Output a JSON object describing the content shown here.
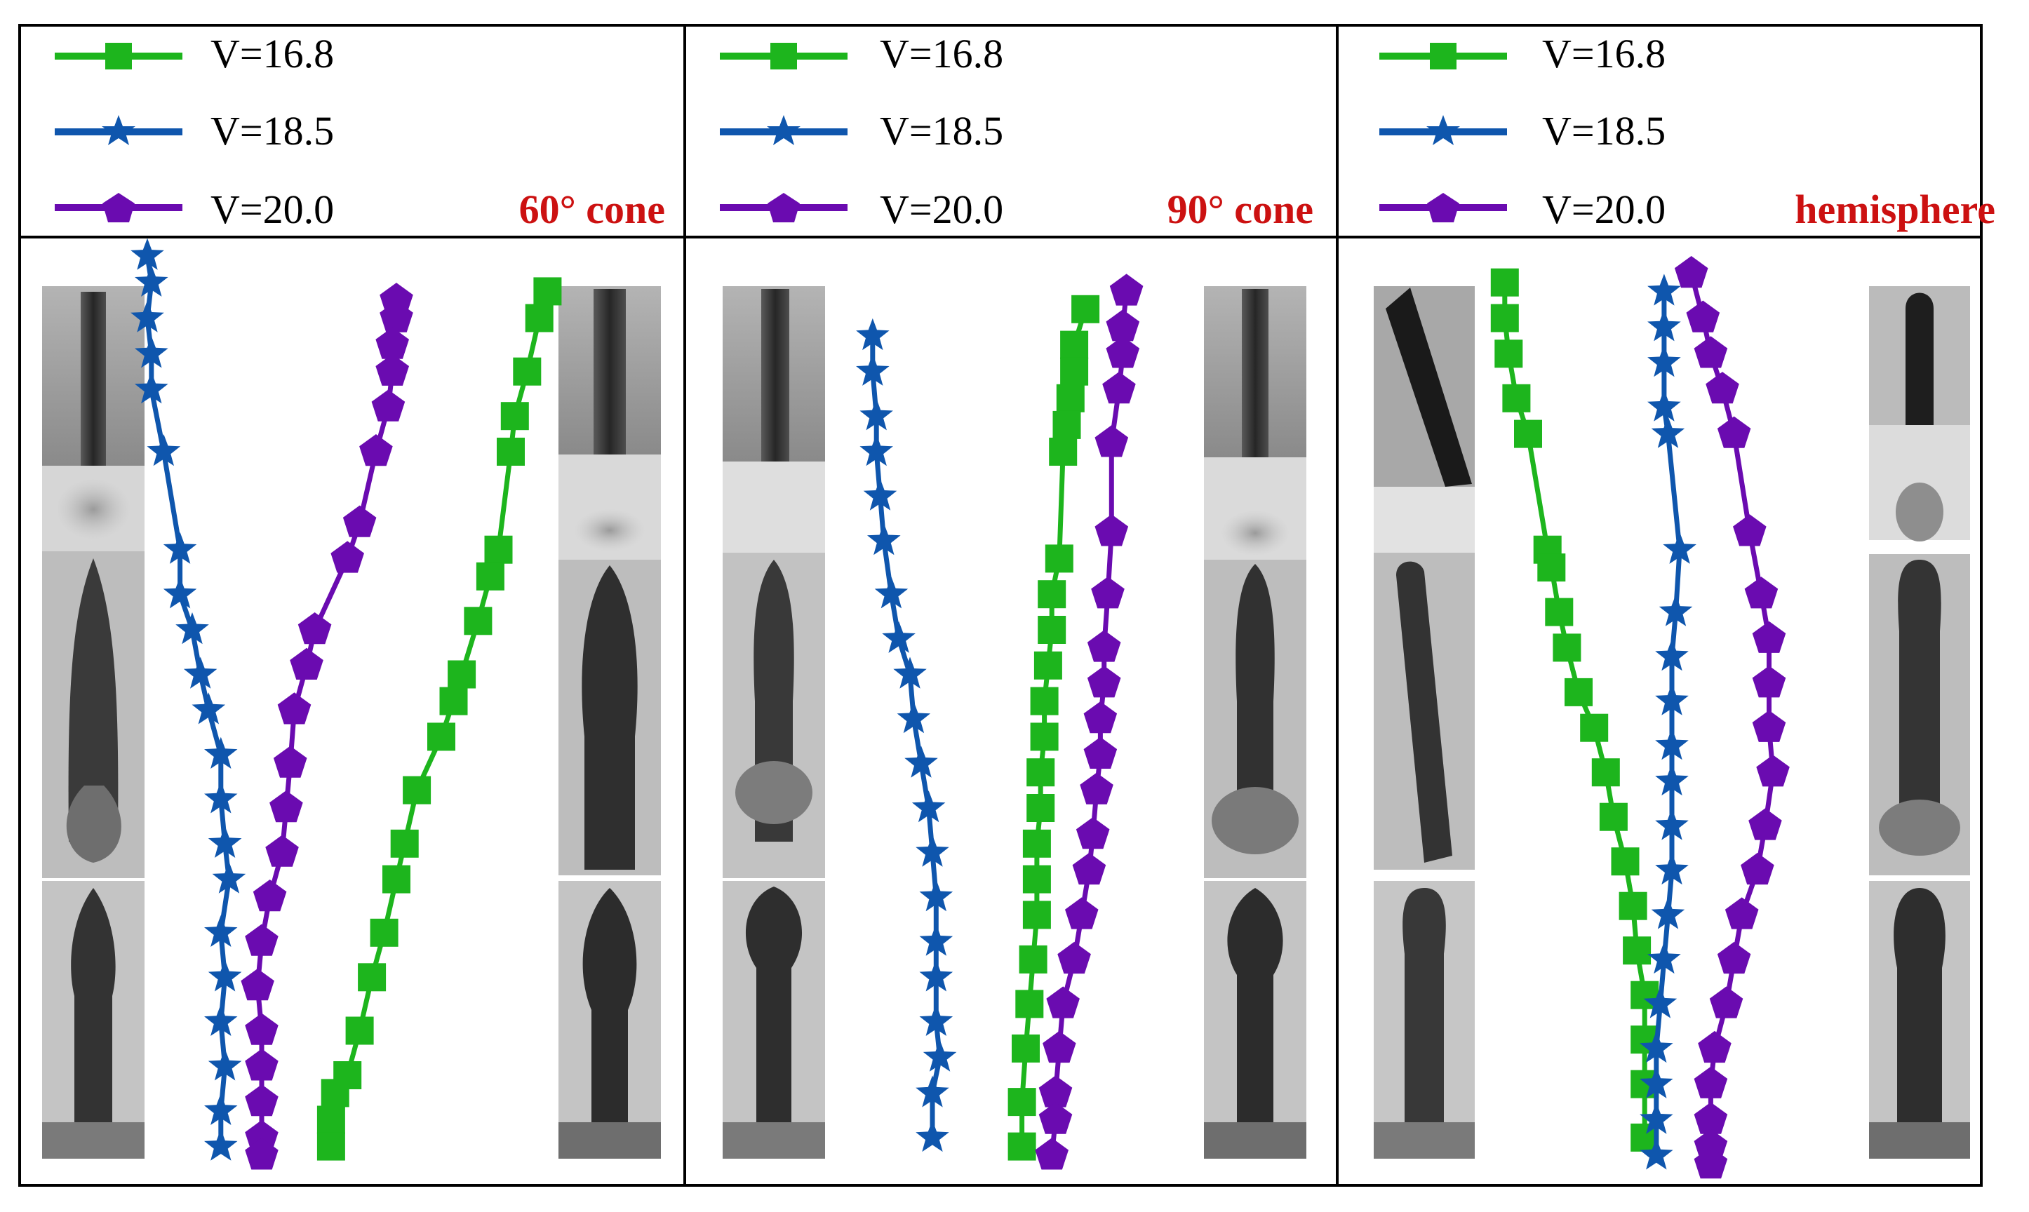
{
  "colors": {
    "green": "#1db51d",
    "blue": "#0f56ad",
    "purple": "#6a0bb0",
    "label_red": "#cc1111"
  },
  "chart_data": [
    {
      "type": "scatter",
      "panel": "60° cone",
      "label": "60° cone",
      "x_unit": "relative horizontal position (0 = left photo strip, 1 = right photo strip)",
      "y_unit": "relative depth (0 = top, 1 = bottom)",
      "legend": [
        "V=16.8",
        "V=18.5",
        "V=20.0"
      ],
      "series": [
        {
          "name": "V=16.8",
          "marker": "square",
          "color": "green",
          "x": [
            0.98,
            0.96,
            0.93,
            0.9,
            0.89,
            0.86,
            0.84,
            0.81,
            0.77,
            0.75,
            0.72,
            0.66,
            0.63,
            0.61,
            0.58,
            0.55,
            0.52,
            0.49,
            0.46,
            0.45,
            0.45
          ],
          "y": [
            0.02,
            0.05,
            0.11,
            0.16,
            0.2,
            0.31,
            0.34,
            0.39,
            0.45,
            0.48,
            0.52,
            0.58,
            0.64,
            0.68,
            0.74,
            0.79,
            0.85,
            0.9,
            0.92,
            0.95,
            0.98
          ]
        },
        {
          "name": "V=18.5",
          "marker": "star",
          "color": "blue",
          "x": [
            0.0,
            0.01,
            0.0,
            0.01,
            0.01,
            0.04,
            0.08,
            0.08,
            0.11,
            0.13,
            0.15,
            0.18,
            0.18,
            0.19,
            0.2,
            0.18,
            0.19,
            0.18,
            0.19,
            0.18,
            0.18
          ],
          "y": [
            -0.02,
            0.01,
            0.05,
            0.09,
            0.13,
            0.2,
            0.31,
            0.36,
            0.4,
            0.45,
            0.49,
            0.54,
            0.59,
            0.64,
            0.68,
            0.74,
            0.79,
            0.84,
            0.89,
            0.94,
            0.98
          ]
        },
        {
          "name": "V=20.0",
          "marker": "pentagon",
          "color": "purple",
          "x": [
            0.61,
            0.61,
            0.6,
            0.6,
            0.59,
            0.56,
            0.52,
            0.49,
            0.41,
            0.39,
            0.36,
            0.35,
            0.34,
            0.33,
            0.3,
            0.28,
            0.27,
            0.28,
            0.28,
            0.28,
            0.28,
            0.28
          ],
          "y": [
            0.03,
            0.05,
            0.08,
            0.11,
            0.15,
            0.2,
            0.28,
            0.32,
            0.4,
            0.44,
            0.49,
            0.55,
            0.6,
            0.65,
            0.7,
            0.75,
            0.8,
            0.85,
            0.89,
            0.93,
            0.97,
            0.99
          ]
        }
      ]
    },
    {
      "type": "scatter",
      "panel": "90° cone",
      "label": "90° cone",
      "x_unit": "relative horizontal position (0 = left photo strip, 1 = right photo strip)",
      "y_unit": "relative depth (0 = top, 1 = bottom)",
      "legend": [
        "V=16.8",
        "V=18.5",
        "V=20.0"
      ],
      "series": [
        {
          "name": "V=16.8",
          "marker": "square",
          "color": "green",
          "x": [
            0.69,
            0.66,
            0.66,
            0.65,
            0.64,
            0.63,
            0.62,
            0.6,
            0.6,
            0.59,
            0.58,
            0.58,
            0.57,
            0.57,
            0.56,
            0.56,
            0.56,
            0.55,
            0.54,
            0.53,
            0.52,
            0.52
          ],
          "y": [
            0.04,
            0.08,
            0.11,
            0.14,
            0.17,
            0.2,
            0.32,
            0.36,
            0.4,
            0.44,
            0.48,
            0.52,
            0.56,
            0.6,
            0.64,
            0.68,
            0.72,
            0.77,
            0.82,
            0.87,
            0.93,
            0.98
          ]
        },
        {
          "name": "V=18.5",
          "marker": "star",
          "color": "blue",
          "x": [
            0.12,
            0.12,
            0.13,
            0.13,
            0.14,
            0.15,
            0.17,
            0.19,
            0.22,
            0.23,
            0.25,
            0.27,
            0.28,
            0.29,
            0.29,
            0.29,
            0.29,
            0.3,
            0.28,
            0.28
          ],
          "y": [
            0.07,
            0.11,
            0.16,
            0.2,
            0.25,
            0.3,
            0.36,
            0.41,
            0.45,
            0.5,
            0.55,
            0.6,
            0.65,
            0.7,
            0.75,
            0.79,
            0.84,
            0.88,
            0.92,
            0.97
          ]
        },
        {
          "name": "V=20.0",
          "marker": "pentagon",
          "color": "purple",
          "x": [
            0.8,
            0.79,
            0.79,
            0.78,
            0.76,
            0.76,
            0.75,
            0.74,
            0.74,
            0.73,
            0.73,
            0.72,
            0.71,
            0.7,
            0.68,
            0.66,
            0.63,
            0.62,
            0.61,
            0.61,
            0.6
          ],
          "y": [
            0.02,
            0.06,
            0.09,
            0.13,
            0.19,
            0.29,
            0.36,
            0.42,
            0.46,
            0.5,
            0.54,
            0.58,
            0.63,
            0.67,
            0.72,
            0.77,
            0.82,
            0.87,
            0.92,
            0.95,
            0.99
          ]
        }
      ]
    },
    {
      "type": "scatter",
      "panel": "hemisphere",
      "label": "hemisphere",
      "x_unit": "relative horizontal position (0 = left photo strip, 1 = right photo strip)",
      "y_unit": "relative depth (0 = top, 1 = bottom)",
      "legend": [
        "V=16.8",
        "V=18.5",
        "V=20.0"
      ],
      "series": [
        {
          "name": "V=16.8",
          "marker": "square",
          "color": "green",
          "x": [
            0.07,
            0.07,
            0.08,
            0.1,
            0.13,
            0.18,
            0.19,
            0.21,
            0.23,
            0.26,
            0.3,
            0.33,
            0.35,
            0.38,
            0.4,
            0.41,
            0.43,
            0.43,
            0.43,
            0.43
          ],
          "y": [
            0.01,
            0.05,
            0.09,
            0.14,
            0.18,
            0.31,
            0.33,
            0.38,
            0.42,
            0.47,
            0.51,
            0.56,
            0.61,
            0.66,
            0.71,
            0.76,
            0.81,
            0.86,
            0.91,
            0.97
          ]
        },
        {
          "name": "V=18.5",
          "marker": "star",
          "color": "blue",
          "x": [
            0.48,
            0.48,
            0.48,
            0.48,
            0.49,
            0.52,
            0.51,
            0.5,
            0.5,
            0.5,
            0.5,
            0.5,
            0.5,
            0.49,
            0.48,
            0.47,
            0.46,
            0.46,
            0.46,
            0.46
          ],
          "y": [
            0.02,
            0.06,
            0.1,
            0.15,
            0.18,
            0.31,
            0.38,
            0.43,
            0.48,
            0.53,
            0.57,
            0.62,
            0.67,
            0.72,
            0.77,
            0.82,
            0.87,
            0.91,
            0.95,
            0.99
          ]
        },
        {
          "name": "V=20.0",
          "marker": "pentagon",
          "color": "purple",
          "x": [
            0.55,
            0.58,
            0.6,
            0.63,
            0.66,
            0.7,
            0.73,
            0.75,
            0.75,
            0.75,
            0.76,
            0.74,
            0.72,
            0.68,
            0.66,
            0.64,
            0.61,
            0.6,
            0.6,
            0.6,
            0.6
          ],
          "y": [
            0.0,
            0.05,
            0.09,
            0.13,
            0.18,
            0.29,
            0.36,
            0.41,
            0.46,
            0.51,
            0.56,
            0.62,
            0.67,
            0.72,
            0.77,
            0.82,
            0.87,
            0.91,
            0.95,
            0.98,
            1.0
          ]
        }
      ]
    }
  ]
}
